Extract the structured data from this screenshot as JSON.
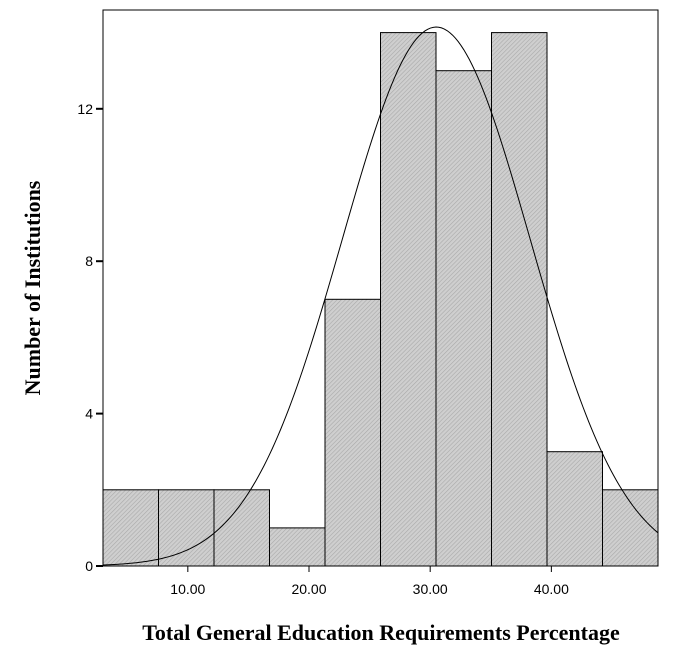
{
  "chart_data": {
    "type": "bar",
    "subtype": "histogram-with-normal-curve",
    "xlabel": "Total General Education Requirements Percentage",
    "ylabel": "Number of Institutions",
    "xlim": [
      3.0,
      48.8
    ],
    "ylim": [
      0,
      14
    ],
    "bin_width": 4.58,
    "bins": [
      {
        "start": 3.0,
        "end": 7.58,
        "count": 2
      },
      {
        "start": 7.58,
        "end": 12.16,
        "count": 2
      },
      {
        "start": 12.16,
        "end": 16.74,
        "count": 2
      },
      {
        "start": 16.74,
        "end": 21.32,
        "count": 1
      },
      {
        "start": 21.32,
        "end": 25.9,
        "count": 7
      },
      {
        "start": 25.9,
        "end": 30.48,
        "count": 14
      },
      {
        "start": 30.48,
        "end": 35.06,
        "count": 13
      },
      {
        "start": 35.06,
        "end": 39.64,
        "count": 14
      },
      {
        "start": 39.64,
        "end": 44.22,
        "count": 3
      },
      {
        "start": 44.22,
        "end": 48.8,
        "count": 2
      }
    ],
    "x_ticks": [
      "10.00",
      "20.00",
      "30.00",
      "40.00"
    ],
    "x_tick_values": [
      10,
      20,
      30,
      40
    ],
    "y_ticks": [
      "0",
      "4",
      "8",
      "12"
    ],
    "y_tick_values": [
      0,
      4,
      8,
      12
    ],
    "normal_curve": {
      "mean": 30.5,
      "std": 7.75,
      "n": 60
    },
    "bar_fill": "#c8c8c8",
    "hatch_color": "#a8a8a8",
    "grid": false
  }
}
